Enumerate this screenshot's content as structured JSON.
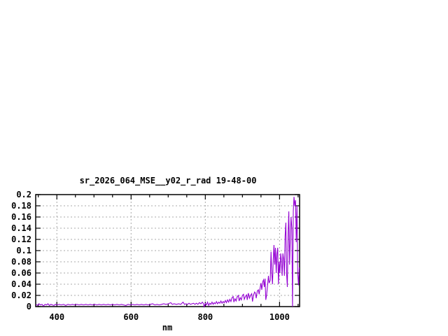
{
  "page": {
    "background": "#ffffff"
  },
  "chart_data": {
    "type": "line",
    "title": "sr_2026_064_MSE__y02_r_rad 19-48-00",
    "xlabel": "nm",
    "ylabel": "",
    "xlim": [
      343,
      1054
    ],
    "ylim": [
      0,
      0.2
    ],
    "grid": true,
    "legend": "none",
    "line_color": "#9400d3",
    "frame_color": "#000000",
    "grid_color": "#a8a8a8",
    "text_color": "#000000",
    "x_ticks": [
      {
        "v": 400,
        "label": "400"
      },
      {
        "v": 600,
        "label": "600"
      },
      {
        "v": 800,
        "label": "800"
      },
      {
        "v": 1000,
        "label": "1000"
      }
    ],
    "x_minor_ticks": [
      350,
      450,
      500,
      550,
      650,
      700,
      750,
      850,
      900,
      950,
      1050
    ],
    "y_ticks": [
      {
        "v": 0,
        "label": "0"
      },
      {
        "v": 0.02,
        "label": "0.02"
      },
      {
        "v": 0.04,
        "label": "0.04"
      },
      {
        "v": 0.06,
        "label": "0.06"
      },
      {
        "v": 0.08,
        "label": "0.08"
      },
      {
        "v": 0.1,
        "label": "0.1"
      },
      {
        "v": 0.12,
        "label": "0.12"
      },
      {
        "v": 0.14,
        "label": "0.14"
      },
      {
        "v": 0.16,
        "label": "0.16"
      },
      {
        "v": 0.18,
        "label": "0.18"
      },
      {
        "v": 0.2,
        "label": "0.2"
      }
    ],
    "points": [
      [
        344,
        0.004
      ],
      [
        348,
        0.002
      ],
      [
        352,
        0.005
      ],
      [
        356,
        0.003
      ],
      [
        360,
        0.004
      ],
      [
        364,
        0.001
      ],
      [
        368,
        0.004
      ],
      [
        372,
        0.003
      ],
      [
        376,
        0.005
      ],
      [
        380,
        0.002
      ],
      [
        384,
        0.004
      ],
      [
        388,
        0.003
      ],
      [
        392,
        0.002
      ],
      [
        396,
        0.004
      ],
      [
        400,
        0.003
      ],
      [
        406,
        0.004
      ],
      [
        412,
        0.003
      ],
      [
        418,
        0.004
      ],
      [
        424,
        0.002
      ],
      [
        430,
        0.004
      ],
      [
        436,
        0.003
      ],
      [
        442,
        0.004
      ],
      [
        448,
        0.003
      ],
      [
        454,
        0.004
      ],
      [
        460,
        0.003
      ],
      [
        466,
        0.004
      ],
      [
        472,
        0.003
      ],
      [
        478,
        0.004
      ],
      [
        484,
        0.003
      ],
      [
        490,
        0.004
      ],
      [
        496,
        0.003
      ],
      [
        502,
        0.004
      ],
      [
        508,
        0.003
      ],
      [
        514,
        0.004
      ],
      [
        520,
        0.003
      ],
      [
        526,
        0.004
      ],
      [
        532,
        0.003
      ],
      [
        538,
        0.004
      ],
      [
        544,
        0.003
      ],
      [
        550,
        0.004
      ],
      [
        556,
        0.003
      ],
      [
        562,
        0.004
      ],
      [
        568,
        0.003
      ],
      [
        574,
        0.004
      ],
      [
        580,
        0.003
      ],
      [
        586,
        0.002
      ],
      [
        592,
        0.004
      ],
      [
        598,
        0.003
      ],
      [
        604,
        0.004
      ],
      [
        610,
        0.003
      ],
      [
        616,
        0.004
      ],
      [
        622,
        0.003
      ],
      [
        628,
        0.004
      ],
      [
        634,
        0.003
      ],
      [
        640,
        0.004
      ],
      [
        646,
        0.003
      ],
      [
        652,
        0.004
      ],
      [
        658,
        0.005
      ],
      [
        664,
        0.003
      ],
      [
        670,
        0.004
      ],
      [
        676,
        0.003
      ],
      [
        682,
        0.004
      ],
      [
        688,
        0.005
      ],
      [
        694,
        0.004
      ],
      [
        700,
        0.005
      ],
      [
        707,
        0.007
      ],
      [
        711,
        0.004
      ],
      [
        716,
        0.005
      ],
      [
        722,
        0.004
      ],
      [
        728,
        0.005
      ],
      [
        734,
        0.004
      ],
      [
        740,
        0.008
      ],
      [
        744,
        0.004
      ],
      [
        748,
        0.005
      ],
      [
        752,
        0.004
      ],
      [
        756,
        0.006
      ],
      [
        760,
        0.004
      ],
      [
        764,
        0.005
      ],
      [
        768,
        0.006
      ],
      [
        772,
        0.004
      ],
      [
        776,
        0.006
      ],
      [
        780,
        0.004
      ],
      [
        784,
        0.007
      ],
      [
        788,
        0.005
      ],
      [
        792,
        0.008
      ],
      [
        795,
        0.005
      ],
      [
        797,
        0.0
      ],
      [
        800,
        0.006
      ],
      [
        803,
        0.003
      ],
      [
        806,
        0.008
      ],
      [
        809,
        0.002
      ],
      [
        812,
        0.006
      ],
      [
        815,
        0.004
      ],
      [
        818,
        0.008
      ],
      [
        821,
        0.004
      ],
      [
        824,
        0.007
      ],
      [
        827,
        0.005
      ],
      [
        830,
        0.009
      ],
      [
        833,
        0.005
      ],
      [
        836,
        0.008
      ],
      [
        839,
        0.006
      ],
      [
        842,
        0.01
      ],
      [
        845,
        0.006
      ],
      [
        848,
        0.009
      ],
      [
        851,
        0.007
      ],
      [
        854,
        0.011
      ],
      [
        857,
        0.007
      ],
      [
        860,
        0.012
      ],
      [
        863,
        0.008
      ],
      [
        866,
        0.013
      ],
      [
        869,
        0.009
      ],
      [
        872,
        0.016
      ],
      [
        875,
        0.018
      ],
      [
        877,
        0.008
      ],
      [
        880,
        0.014
      ],
      [
        883,
        0.01
      ],
      [
        886,
        0.018
      ],
      [
        889,
        0.02
      ],
      [
        891,
        0.01
      ],
      [
        894,
        0.016
      ],
      [
        897,
        0.012
      ],
      [
        900,
        0.02
      ],
      [
        903,
        0.022
      ],
      [
        905,
        0.013
      ],
      [
        908,
        0.018
      ],
      [
        911,
        0.021
      ],
      [
        913,
        0.012
      ],
      [
        916,
        0.024
      ],
      [
        919,
        0.015
      ],
      [
        922,
        0.02
      ],
      [
        925,
        0.023
      ],
      [
        927,
        0.009
      ],
      [
        930,
        0.021
      ],
      [
        933,
        0.026
      ],
      [
        935,
        0.024
      ],
      [
        937,
        0.015
      ],
      [
        940,
        0.028
      ],
      [
        943,
        0.03
      ],
      [
        945,
        0.022
      ],
      [
        948,
        0.035
      ],
      [
        950,
        0.042
      ],
      [
        952,
        0.03
      ],
      [
        955,
        0.045
      ],
      [
        957,
        0.048
      ],
      [
        959,
        0.035
      ],
      [
        961,
        0.05
      ],
      [
        963,
        0.012
      ],
      [
        965,
        0.02
      ],
      [
        968,
        0.04
      ],
      [
        970,
        0.055
      ],
      [
        972,
        0.042
      ],
      [
        975,
        0.047
      ],
      [
        977,
        0.098
      ],
      [
        979,
        0.06
      ],
      [
        981,
        0.04
      ],
      [
        983,
        0.085
      ],
      [
        985,
        0.11
      ],
      [
        987,
        0.075
      ],
      [
        989,
        0.105
      ],
      [
        991,
        0.06
      ],
      [
        993,
        0.095
      ],
      [
        995,
        0.105
      ],
      [
        997,
        0.04
      ],
      [
        999,
        0.08
      ],
      [
        1001,
        0.06
      ],
      [
        1003,
        0.095
      ],
      [
        1005,
        0.082
      ],
      [
        1007,
        0.055
      ],
      [
        1009,
        0.095
      ],
      [
        1011,
        0.085
      ],
      [
        1013,
        0.055
      ],
      [
        1015,
        0.125
      ],
      [
        1017,
        0.15
      ],
      [
        1019,
        0.06
      ],
      [
        1021,
        0.035
      ],
      [
        1023,
        0.13
      ],
      [
        1025,
        0.17
      ],
      [
        1027,
        0.075
      ],
      [
        1029,
        0.12
      ],
      [
        1031,
        0.16
      ],
      [
        1033,
        0.14
      ],
      [
        1035,
        0.0
      ],
      [
        1037,
        0.17
      ],
      [
        1039,
        0.196
      ],
      [
        1041,
        0.18
      ],
      [
        1043,
        0.19
      ],
      [
        1045,
        0.115
      ],
      [
        1047,
        0.18
      ],
      [
        1049,
        0.06
      ],
      [
        1051,
        0.038
      ],
      [
        1053,
        0.07
      ]
    ]
  }
}
